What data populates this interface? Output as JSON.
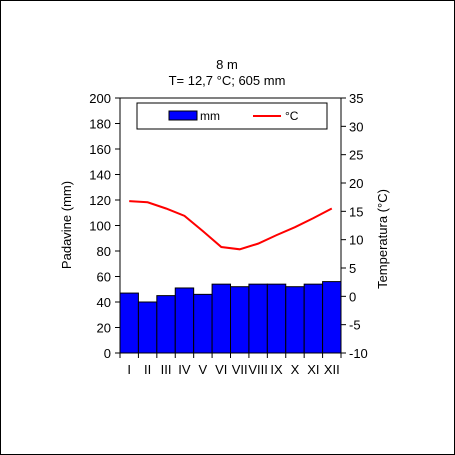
{
  "chart_data": {
    "type": "bar",
    "title": "8 m",
    "subtitle": "T= 12,7 °C; 605 mm",
    "categories": [
      "I",
      "II",
      "III",
      "IV",
      "V",
      "VI",
      "VII",
      "VIII",
      "IX",
      "X",
      "XI",
      "XII"
    ],
    "series": [
      {
        "name": "mm",
        "type": "bar",
        "axis": "left",
        "color": "#0000ff",
        "values": [
          47,
          40,
          45,
          51,
          46,
          54,
          52,
          54,
          54,
          52,
          54,
          56
        ]
      },
      {
        "name": "°C",
        "type": "line",
        "axis": "right",
        "color": "#ff0000",
        "values": [
          16.8,
          16.6,
          15.5,
          14.2,
          11.5,
          8.7,
          8.3,
          9.3,
          10.8,
          12.2,
          13.8,
          15.5
        ]
      }
    ],
    "ylabel": "Padavine  (mm)",
    "y2label": "Temperatura  (°C)",
    "ylim": [
      0,
      200
    ],
    "y2lim": [
      -10,
      35
    ],
    "yticks": [
      0,
      20,
      40,
      60,
      80,
      100,
      120,
      140,
      160,
      180,
      200
    ],
    "y2ticks": [
      -10,
      -5,
      0,
      5,
      10,
      15,
      20,
      25,
      30,
      35
    ],
    "grid": false,
    "legend": "top"
  }
}
